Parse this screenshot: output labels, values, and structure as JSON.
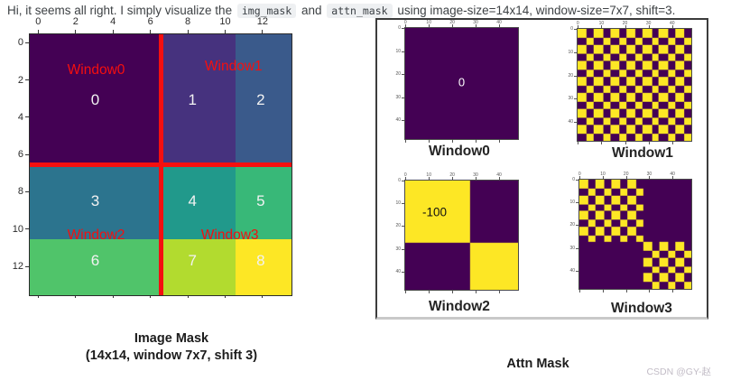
{
  "header": {
    "parts": [
      {
        "t": "text",
        "v": "Hi, it seems all right. I simply visualize the "
      },
      {
        "t": "code",
        "v": "img_mask"
      },
      {
        "t": "text",
        "v": " and "
      },
      {
        "t": "code",
        "v": "attn_mask"
      },
      {
        "t": "text",
        "v": " using image-size=14x14, window-size=7x7, shift=3."
      }
    ]
  },
  "chart_data": [
    {
      "id": "image_mask",
      "type": "heatmap",
      "title": "Image Mask",
      "subtitle": "(14x14, window 7x7, shift 3)",
      "grid": {
        "rows": 14,
        "cols": 14
      },
      "x_ticks": [
        0,
        2,
        4,
        6,
        8,
        10,
        12
      ],
      "y_ticks": [
        0,
        2,
        4,
        6,
        8,
        10,
        12
      ],
      "colormap": "viridis",
      "regions": [
        {
          "value": 0,
          "row0": 0,
          "row1": 7,
          "col0": 0,
          "col1": 7,
          "color": "#440154"
        },
        {
          "value": 1,
          "row0": 0,
          "row1": 7,
          "col0": 7,
          "col1": 11,
          "color": "#46327e"
        },
        {
          "value": 2,
          "row0": 0,
          "row1": 7,
          "col0": 11,
          "col1": 14,
          "color": "#3a5a8b"
        },
        {
          "value": 3,
          "row0": 7,
          "row1": 11,
          "col0": 0,
          "col1": 7,
          "color": "#2c748e"
        },
        {
          "value": 4,
          "row0": 7,
          "row1": 11,
          "col0": 7,
          "col1": 11,
          "color": "#21998b"
        },
        {
          "value": 5,
          "row0": 7,
          "row1": 11,
          "col0": 11,
          "col1": 14,
          "color": "#38b878"
        },
        {
          "value": 6,
          "row0": 11,
          "row1": 14,
          "col0": 0,
          "col1": 7,
          "color": "#50c46a"
        },
        {
          "value": 7,
          "row0": 11,
          "row1": 14,
          "col0": 7,
          "col1": 11,
          "color": "#b2db2f"
        },
        {
          "value": 8,
          "row0": 11,
          "row1": 14,
          "col0": 11,
          "col1": 14,
          "color": "#fde725"
        }
      ],
      "value_labels": [
        {
          "text": "0",
          "cx": 3.5,
          "cy": 3.55
        },
        {
          "text": "1",
          "cx": 8.7,
          "cy": 3.55
        },
        {
          "text": "2",
          "cx": 12.35,
          "cy": 3.55
        },
        {
          "text": "3",
          "cx": 3.5,
          "cy": 8.95
        },
        {
          "text": "4",
          "cx": 8.7,
          "cy": 8.95
        },
        {
          "text": "5",
          "cx": 12.35,
          "cy": 8.95
        },
        {
          "text": "6",
          "cx": 3.5,
          "cy": 12.15
        },
        {
          "text": "7",
          "cx": 8.7,
          "cy": 12.15
        },
        {
          "text": "8",
          "cx": 12.35,
          "cy": 12.15
        }
      ],
      "window_labels": [
        {
          "text": "Window0",
          "cx": 3.55,
          "cy": 1.95
        },
        {
          "text": "Window1",
          "cx": 10.9,
          "cy": 1.75
        },
        {
          "text": "Window2",
          "cx": 3.55,
          "cy": 10.78
        },
        {
          "text": "Window3",
          "cx": 10.7,
          "cy": 10.78
        }
      ],
      "dividers": {
        "color": "#f50f0f",
        "x_units": 7,
        "y_units": 7,
        "thickness_px": 5
      },
      "value_label_color": "#f2f2f2",
      "window_label_color": "#f50f0f"
    },
    {
      "id": "attn_mask",
      "type": "heatmap-grid",
      "title": "Attn Mask",
      "n": 49,
      "window_side": 7,
      "value_same_region": 0,
      "value_cross_region": -100,
      "color_low": "#440154",
      "color_high": "#fde725",
      "x_ticks": [
        0,
        10,
        20,
        30,
        40
      ],
      "y_ticks": [
        0,
        10,
        20,
        30,
        40
      ],
      "panels": [
        {
          "title": "Window0",
          "row_regions": [
            0,
            0,
            0,
            0,
            0,
            0,
            0
          ],
          "col_regions": [
            0,
            0,
            0,
            0,
            0,
            0,
            0
          ],
          "annotation": {
            "text": "0",
            "color": "#ffffff",
            "cx_pct": 50,
            "cy_pct": 49,
            "size": 13
          }
        },
        {
          "title": "Window1",
          "row_regions": [
            0,
            0,
            0,
            0,
            0,
            0,
            0
          ],
          "col_regions": [
            0,
            0,
            0,
            0,
            1,
            1,
            1
          ],
          "annotation": null
        },
        {
          "title": "Window2",
          "row_regions": [
            0,
            0,
            0,
            0,
            1,
            1,
            1
          ],
          "col_regions": [
            0,
            0,
            0,
            0,
            0,
            0,
            0
          ],
          "annotation": {
            "text": "-100",
            "color": "#101010",
            "cx_pct": 26,
            "cy_pct": 29,
            "size": 13.5
          }
        },
        {
          "title": "Window3",
          "row_regions": [
            0,
            0,
            0,
            0,
            1,
            1,
            1
          ],
          "col_regions": [
            0,
            0,
            0,
            0,
            1,
            1,
            1
          ],
          "annotation": null
        }
      ]
    }
  ],
  "watermark": "CSDN @GY-赵"
}
